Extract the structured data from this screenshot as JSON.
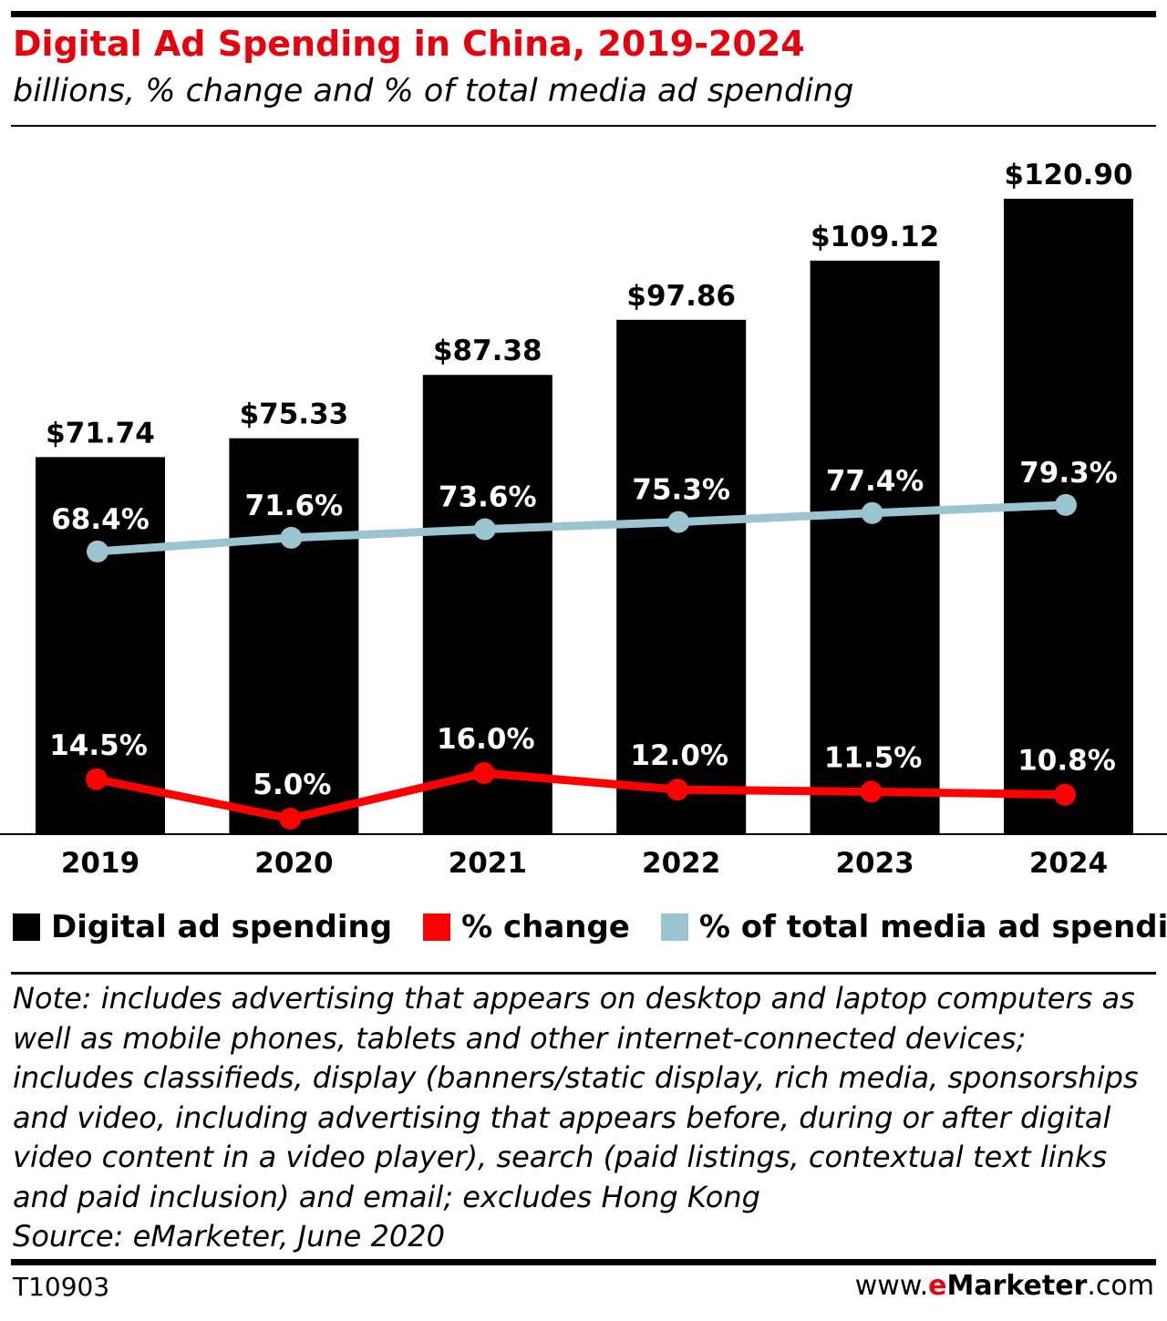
{
  "header": {
    "title": "Digital Ad Spending in China, 2019-2024",
    "subtitle": "billions, % change and % of total media ad spending"
  },
  "colors": {
    "bar": "#000000",
    "change": "#ff0000",
    "share": "#9bc4d3",
    "title": "#e8000d"
  },
  "chart_data": {
    "type": "bar",
    "title": "Digital Ad Spending in China, 2019-2024",
    "categories": [
      "2019",
      "2020",
      "2021",
      "2022",
      "2023",
      "2024"
    ],
    "series": [
      {
        "name": "Digital ad spending",
        "type": "bar",
        "values": [
          71.74,
          75.33,
          87.38,
          97.86,
          109.12,
          120.9
        ],
        "labels": [
          "$71.74",
          "$75.33",
          "$87.38",
          "$97.86",
          "$109.12",
          "$120.90"
        ]
      },
      {
        "name": "% change",
        "type": "line",
        "values": [
          14.5,
          5.0,
          16.0,
          12.0,
          11.5,
          10.8
        ],
        "labels": [
          "14.5%",
          "5.0%",
          "16.0%",
          "12.0%",
          "11.5%",
          "10.8%"
        ]
      },
      {
        "name": "% of total media ad spending",
        "type": "line",
        "values": [
          68.4,
          71.6,
          73.6,
          75.3,
          77.4,
          79.3
        ],
        "labels": [
          "68.4%",
          "71.6%",
          "73.6%",
          "75.3%",
          "77.4%",
          "79.3%"
        ]
      }
    ],
    "ylim": [
      0,
      120.9
    ]
  },
  "legend": {
    "spending": "Digital ad spending",
    "change": "% change",
    "share": "% of total media ad spending"
  },
  "note": {
    "text": "Note: includes advertising that appears on desktop and laptop computers as well as mobile phones, tablets and other internet-connected devices; includes classifieds, display (banners/static display, rich media, sponsorships and video, including advertising that appears before, during or after digital video content in a video player), search (paid listings, contextual text links and paid inclusion) and email; excludes Hong Kong",
    "source": "Source: eMarketer, June 2020"
  },
  "footer": {
    "code": "T10903",
    "site_prefix": "www.",
    "site_e": "e",
    "site_brand": "Marketer",
    "site_suffix": ".com"
  }
}
